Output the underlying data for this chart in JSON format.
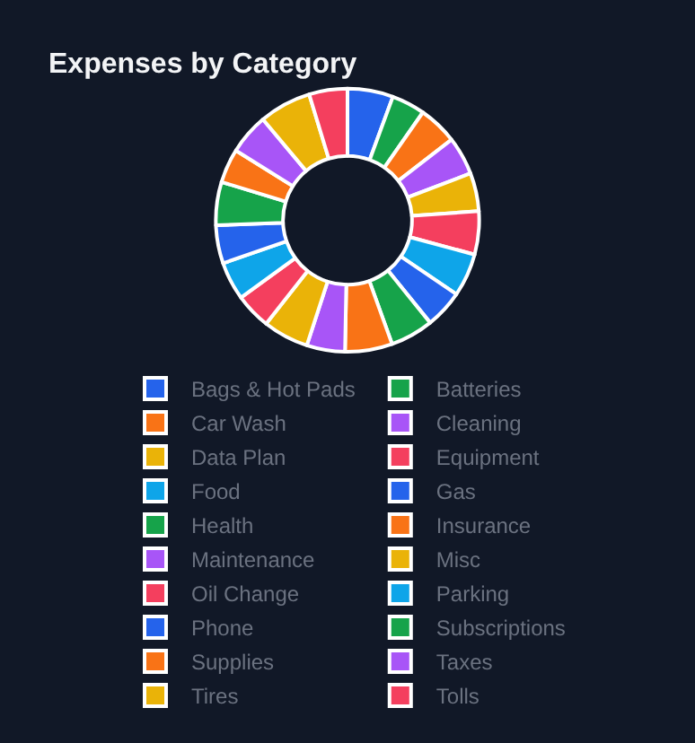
{
  "chart_data": {
    "type": "donut",
    "title": "Expenses by Category",
    "categories": [
      "Bags & Hot Pads",
      "Batteries",
      "Car Wash",
      "Cleaning",
      "Data Plan",
      "Equipment",
      "Food",
      "Gas",
      "Health",
      "Insurance",
      "Maintenance",
      "Misc",
      "Oil Change",
      "Parking",
      "Phone",
      "Subscriptions",
      "Supplies",
      "Taxes",
      "Tires",
      "Tolls"
    ],
    "values": [
      5.6,
      4.1,
      4.8,
      4.7,
      4.7,
      5.3,
      5.3,
      4.7,
      5.3,
      5.8,
      4.7,
      5.6,
      4.4,
      4.7,
      4.7,
      5.3,
      4.2,
      5.0,
      6.4,
      4.7
    ],
    "colors": [
      "#2563eb",
      "#16a34a",
      "#f97316",
      "#a855f7",
      "#eab308",
      "#f43f5e",
      "#0ea5e9",
      "#2563eb",
      "#16a34a",
      "#f97316",
      "#a855f7",
      "#eab308",
      "#f43f5e",
      "#0ea5e9",
      "#2563eb",
      "#16a34a",
      "#f97316",
      "#a855f7",
      "#eab308",
      "#f43f5e"
    ],
    "legend": "bottom"
  }
}
